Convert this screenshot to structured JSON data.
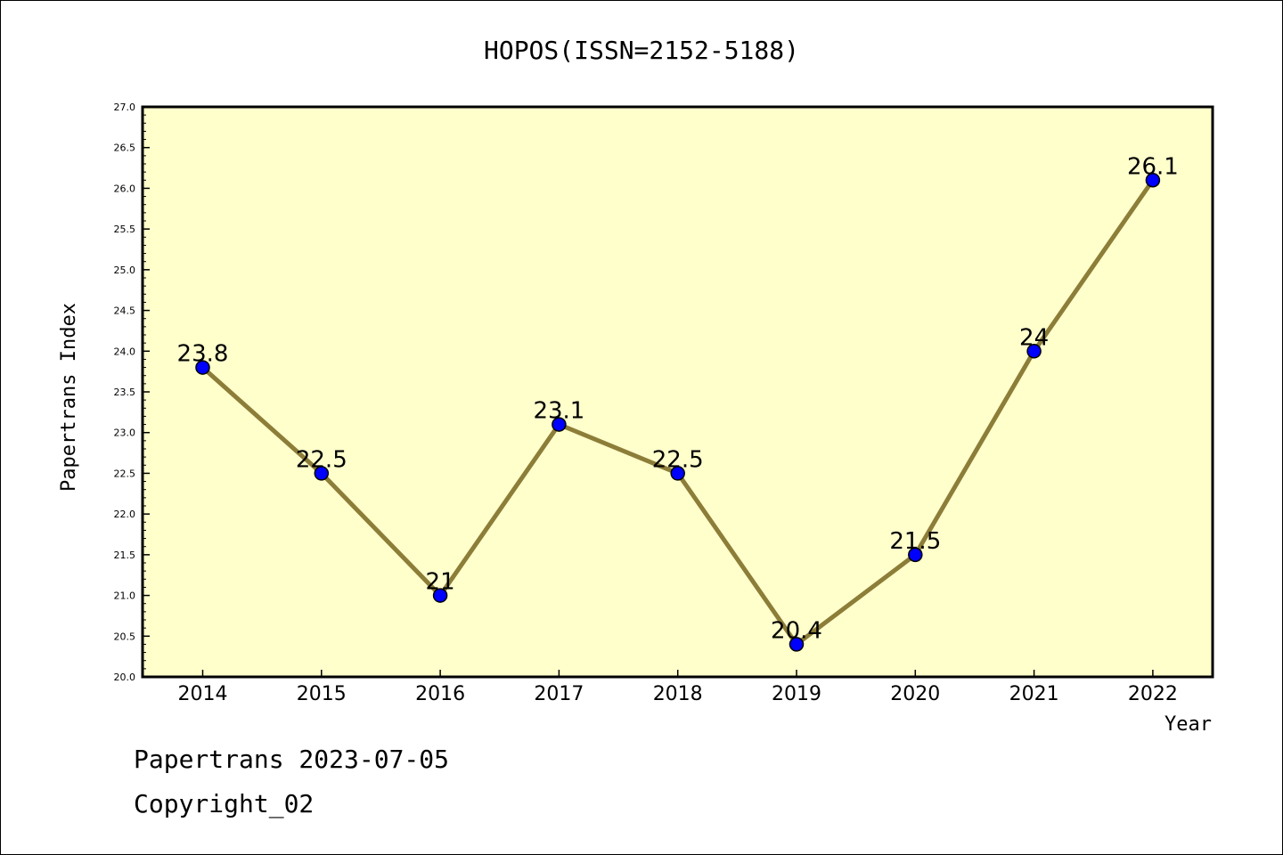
{
  "footer": {
    "line1": "Papertrans 2023-07-05",
    "line2": "Copyright_02"
  },
  "colors": {
    "plot_background": "#ffffcc",
    "line": "#8c7d38",
    "marker": "#0000ff",
    "marker_edge": "#000000",
    "frame": "#000000"
  },
  "chart_data": {
    "type": "line",
    "title": "HOPOS(ISSN=2152-5188)",
    "xlabel": "Year",
    "ylabel": "Papertrans Index",
    "categories": [
      "2014",
      "2015",
      "2016",
      "2017",
      "2018",
      "2019",
      "2020",
      "2021",
      "2022"
    ],
    "values": [
      23.8,
      22.5,
      21,
      23.1,
      22.5,
      20.4,
      21.5,
      24,
      26.1
    ],
    "data_labels": [
      "23.8",
      "22.5",
      "21",
      "23.1",
      "22.5",
      "20.4",
      "21.5",
      "24",
      "26.1"
    ],
    "ylim": [
      20.0,
      27.0
    ],
    "yticks": [
      "20.0",
      "20.5",
      "21.0",
      "21.5",
      "22.0",
      "22.5",
      "23.0",
      "23.5",
      "24.0",
      "24.5",
      "25.0",
      "25.5",
      "26.0",
      "26.5",
      "27.0"
    ],
    "grid": false,
    "legend": "none"
  }
}
